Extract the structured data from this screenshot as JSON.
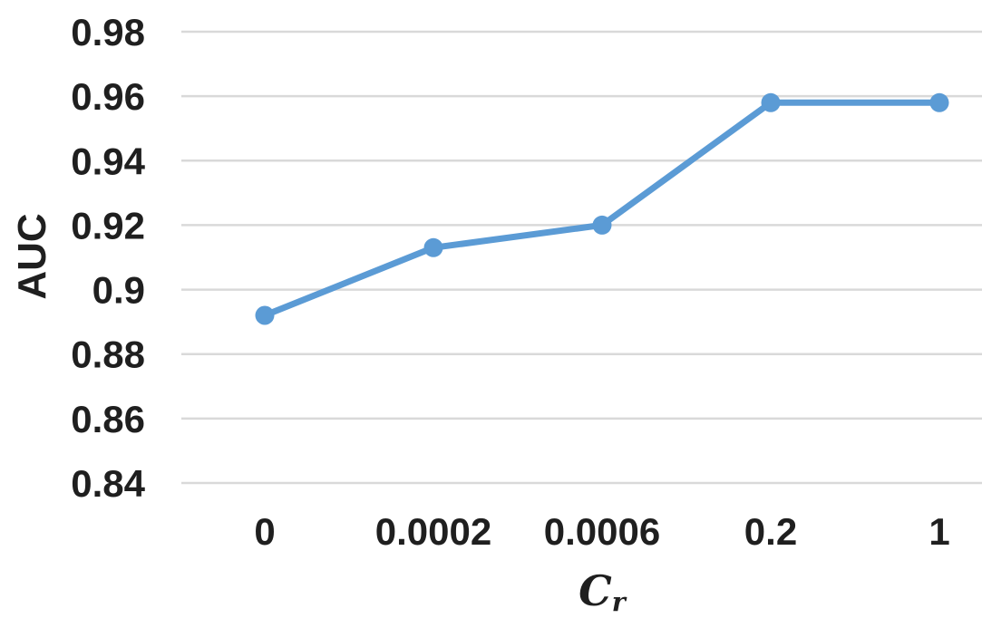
{
  "chart_data": {
    "type": "line",
    "categories": [
      "0",
      "0.0002",
      "0.0006",
      "0.2",
      "1"
    ],
    "values": [
      0.892,
      0.913,
      0.92,
      0.958,
      0.958
    ],
    "xlabel": "C_r",
    "xlabel_base": "C",
    "xlabel_sub": "r",
    "ylabel": "AUC",
    "ylim": [
      0.84,
      0.98
    ],
    "ytick_step": 0.02,
    "ytick_labels": [
      "0.84",
      "0.86",
      "0.88",
      "0.9",
      "0.92",
      "0.94",
      "0.96",
      "0.98"
    ],
    "grid": true,
    "legend": "none",
    "marker": "circle",
    "colors": {
      "line": "#5B9BD5",
      "marker": "#5B9BD5",
      "gridline": "#D9D9D9",
      "text": "#1F1F1F"
    }
  }
}
